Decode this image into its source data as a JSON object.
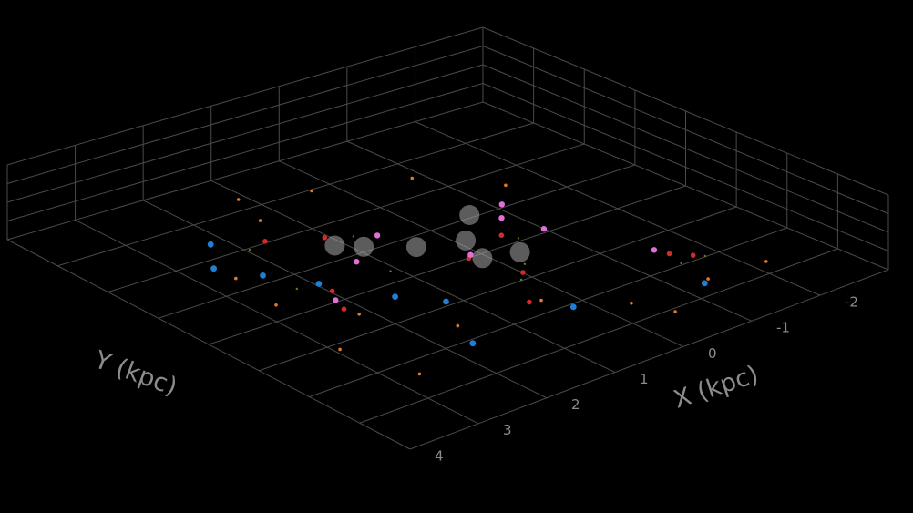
{
  "chart_data": {
    "type": "scatter",
    "projection": "3d",
    "title": "",
    "xlabel": "X (kpc)",
    "ylabel": "Y (kpc)",
    "x_ticks": [
      -2,
      -1,
      0,
      1,
      2,
      3,
      4
    ],
    "x_tick_labels": [
      "-2",
      "-1",
      "0",
      "1",
      "2",
      "3",
      "4"
    ],
    "y_ticks": [],
    "y_tick_labels": [],
    "xlim": [
      -2.8,
      4.2
    ],
    "ylim": [
      -4.2,
      3.8
    ],
    "zlim": [
      -0.3,
      0.3
    ],
    "grid": true,
    "background": "#000000",
    "legend": "none",
    "series": [
      {
        "color": "#4c8a1c",
        "marker_size": 1.2,
        "density": 1,
        "points": [
          [
            -1.6,
            -2.2,
            0.02
          ],
          [
            -1.4,
            -2.0,
            -0.03
          ],
          [
            0.2,
            -1.0,
            0.0
          ],
          [
            0.0,
            -0.8,
            0.05
          ],
          [
            -0.5,
            0.0,
            0.02
          ],
          [
            1.0,
            0.5,
            -0.02
          ],
          [
            0.8,
            1.5,
            0.05
          ],
          [
            1.8,
            2.2,
            0.03
          ],
          [
            2.0,
            1.0,
            -0.04
          ]
        ]
      },
      {
        "color": "#e07a28",
        "marker_size": 1.8,
        "points": [
          [
            -1.9,
            -3.0,
            0.05
          ],
          [
            -1.2,
            -2.8,
            0.02
          ],
          [
            -0.3,
            -2.5,
            -0.04
          ],
          [
            0.5,
            -1.8,
            0.03
          ],
          [
            1.5,
            -1.5,
            -0.02
          ],
          [
            2.2,
            -0.5,
            0.05
          ],
          [
            2.6,
            0.6,
            0.02
          ],
          [
            2.3,
            1.8,
            -0.03
          ],
          [
            1.2,
            2.8,
            0.04
          ],
          [
            0.3,
            3.0,
            0.06
          ],
          [
            -0.8,
            2.5,
            0.02
          ],
          [
            -1.5,
            1.6,
            -0.03
          ],
          [
            3.0,
            -1.2,
            0.05
          ],
          [
            2.8,
            -2.5,
            0.03
          ],
          [
            -0.2,
            -3.5,
            0.08
          ],
          [
            1.0,
            3.5,
            0.05
          ]
        ]
      },
      {
        "color": "#d42a2a",
        "marker_size": 2.8,
        "points": [
          [
            -1.5,
            -2.1,
            0.03
          ],
          [
            -1.3,
            -1.9,
            0.05
          ],
          [
            0.1,
            -0.9,
            0.02
          ],
          [
            0.3,
            -0.1,
            0.04
          ],
          [
            1.0,
            1.8,
            0.03
          ],
          [
            1.5,
            2.3,
            0.02
          ],
          [
            2.2,
            -0.2,
            0.04
          ],
          [
            2.0,
            0.3,
            0.06
          ],
          [
            -0.4,
            0.2,
            0.03
          ],
          [
            0.6,
            -1.7,
            0.02
          ]
        ]
      },
      {
        "color": "#e06fd8",
        "marker_size": 3.2,
        "points": [
          [
            -0.8,
            -0.1,
            0.05
          ],
          [
            -0.7,
            0.6,
            0.04
          ],
          [
            -1.0,
            1.0,
            0.02
          ],
          [
            0.2,
            0.0,
            0.03
          ],
          [
            0.6,
            1.3,
            0.05
          ],
          [
            1.2,
            0.9,
            0.03
          ],
          [
            2.1,
            0.1,
            0.04
          ],
          [
            -1.3,
            -1.6,
            0.03
          ]
        ]
      },
      {
        "color": "#1f7fd6",
        "marker_size": 3.4,
        "points": [
          [
            1.6,
            -0.4,
            0.05
          ],
          [
            1.9,
            0.7,
            0.03
          ],
          [
            2.2,
            1.4,
            0.04
          ],
          [
            2.4,
            2.1,
            0.02
          ],
          [
            2.0,
            2.7,
            0.03
          ],
          [
            1.3,
            -1.0,
            0.05
          ],
          [
            0.4,
            -2.3,
            0.04
          ],
          [
            -1.0,
            -3.0,
            0.06
          ],
          [
            1.8,
            -2.2,
            0.02
          ]
        ]
      },
      {
        "color": "#a8a8a8",
        "marker_size": 11,
        "opacity": 0.55,
        "points": [
          [
            -0.3,
            -0.3,
            0.0
          ],
          [
            0.1,
            -0.1,
            0.0
          ],
          [
            -0.1,
            0.5,
            0.0
          ],
          [
            0.4,
            0.8,
            0.0
          ],
          [
            0.8,
            1.3,
            0.0
          ],
          [
            1.0,
            1.6,
            0.0
          ],
          [
            -0.6,
            1.1,
            0.0
          ]
        ]
      }
    ]
  }
}
